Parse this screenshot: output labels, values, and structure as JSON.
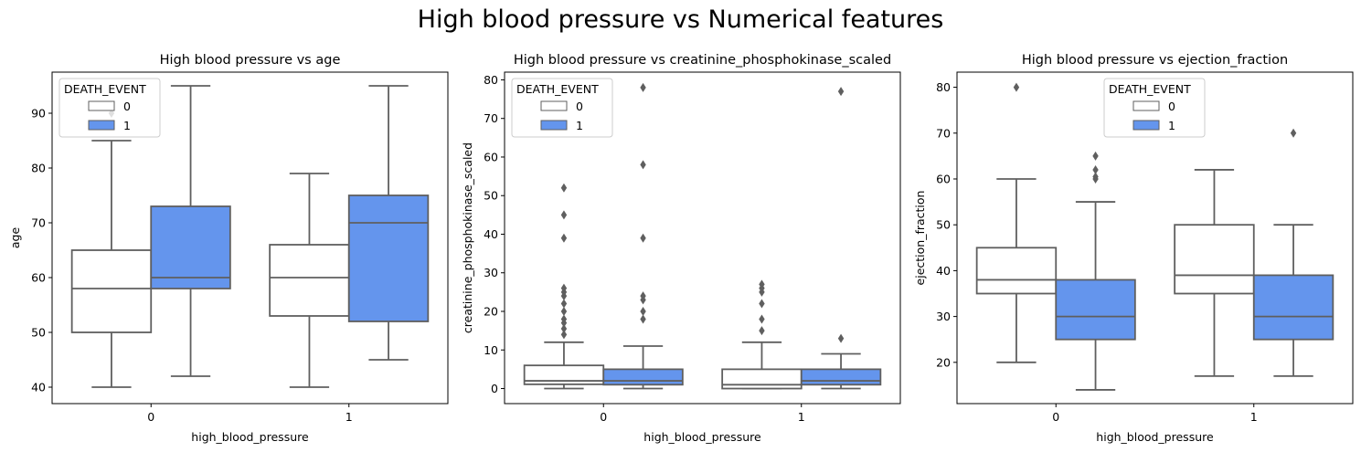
{
  "figure": {
    "suptitle": "High blood pressure vs Numerical features"
  },
  "colors": {
    "hue0": "#ffffff",
    "hue1": "#6495ed",
    "line": "#5f5f5f"
  },
  "chart_data": [
    {
      "type": "box",
      "title": "High blood pressure vs age",
      "xlabel": "high_blood_pressure",
      "ylabel": "age",
      "categories": [
        "0",
        "1"
      ],
      "ylim": [
        37,
        97.5
      ],
      "yticks": [
        40,
        50,
        60,
        70,
        80,
        90
      ],
      "legend": {
        "title": "DEATH_EVENT",
        "position": "upper left",
        "entries": [
          "0",
          "1"
        ]
      },
      "series": [
        {
          "name": "0",
          "boxes": [
            {
              "whislo": 40,
              "q1": 50,
              "med": 58,
              "q3": 65,
              "whishi": 85,
              "fliers": [
                90
              ]
            },
            {
              "whislo": 40,
              "q1": 53,
              "med": 60,
              "q3": 66,
              "whishi": 79,
              "fliers": []
            }
          ]
        },
        {
          "name": "1",
          "boxes": [
            {
              "whislo": 42,
              "q1": 58,
              "med": 60,
              "q3": 73,
              "whishi": 95,
              "fliers": []
            },
            {
              "whislo": 45,
              "q1": 52,
              "med": 70,
              "q3": 75,
              "whishi": 95,
              "fliers": []
            }
          ]
        }
      ]
    },
    {
      "type": "box",
      "title": "High blood pressure vs creatinine_phosphokinase_scaled",
      "xlabel": "high_blood_pressure",
      "ylabel": "creatinine_phosphokinase_scaled",
      "categories": [
        "0",
        "1"
      ],
      "ylim": [
        -3.9,
        82
      ],
      "yticks": [
        0,
        10,
        20,
        30,
        40,
        50,
        60,
        70,
        80
      ],
      "legend": {
        "title": "DEATH_EVENT",
        "position": "upper left",
        "entries": [
          "0",
          "1"
        ]
      },
      "series": [
        {
          "name": "0",
          "boxes": [
            {
              "whislo": 0,
              "q1": 1.1,
              "med": 2,
              "q3": 6,
              "whishi": 12,
              "fliers": [
                14,
                15.5,
                17,
                18,
                20,
                22,
                24,
                25,
                26,
                39,
                45,
                52
              ]
            },
            {
              "whislo": 0,
              "q1": 0,
              "med": 1,
              "q3": 5,
              "whishi": 12,
              "fliers": [
                15,
                18,
                22,
                25,
                26,
                27
              ]
            }
          ]
        },
        {
          "name": "1",
          "boxes": [
            {
              "whislo": 0,
              "q1": 1,
              "med": 2,
              "q3": 5,
              "whishi": 11,
              "fliers": [
                18,
                20,
                23,
                24,
                39,
                58,
                78
              ]
            },
            {
              "whislo": 0,
              "q1": 1,
              "med": 2,
              "q3": 5,
              "whishi": 9,
              "fliers": [
                13,
                77
              ]
            }
          ]
        }
      ]
    },
    {
      "type": "box",
      "title": "High blood pressure vs ejection_fraction",
      "xlabel": "high_blood_pressure",
      "ylabel": "ejection_fraction",
      "categories": [
        "0",
        "1"
      ],
      "ylim": [
        11,
        83.3
      ],
      "yticks": [
        20,
        30,
        40,
        50,
        60,
        70,
        80
      ],
      "legend": {
        "title": "DEATH_EVENT",
        "position": "upper center",
        "entries": [
          "0",
          "1"
        ]
      },
      "series": [
        {
          "name": "0",
          "boxes": [
            {
              "whislo": 20,
              "q1": 35,
              "med": 38,
              "q3": 45,
              "whishi": 60,
              "fliers": [
                80
              ]
            },
            {
              "whislo": 17,
              "q1": 35,
              "med": 39,
              "q3": 50,
              "whishi": 62,
              "fliers": []
            }
          ]
        },
        {
          "name": "1",
          "boxes": [
            {
              "whislo": 14,
              "q1": 25,
              "med": 30,
              "q3": 38,
              "whishi": 55,
              "fliers": [
                60,
                60.5,
                62,
                65
              ]
            },
            {
              "whislo": 17,
              "q1": 25,
              "med": 30,
              "q3": 39,
              "whishi": 50,
              "fliers": [
                70
              ]
            }
          ]
        }
      ]
    }
  ]
}
